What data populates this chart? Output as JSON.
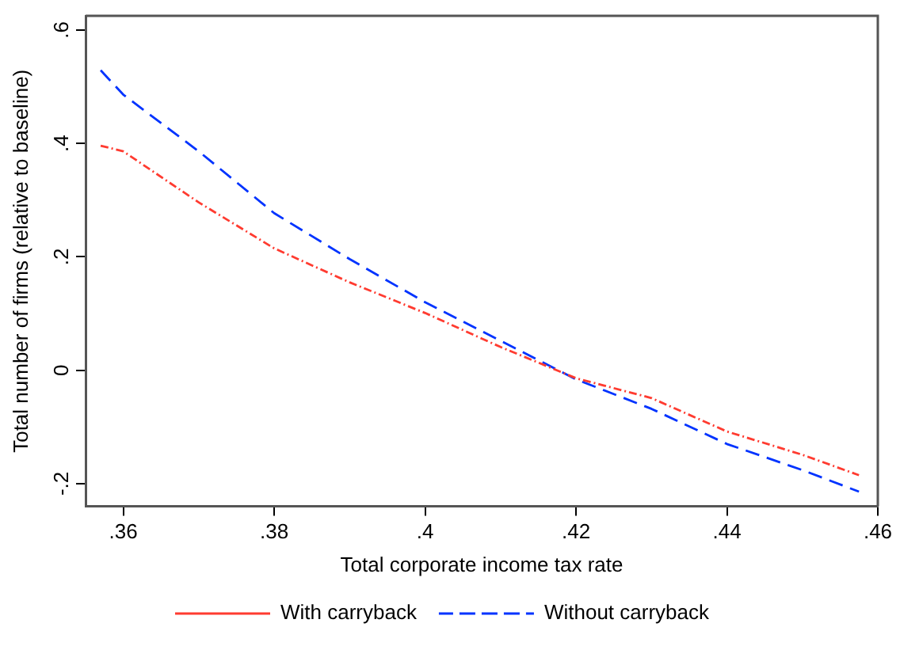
{
  "chart_data": {
    "type": "line",
    "xlabel": "Total corporate income tax rate",
    "ylabel": "Total number of firms (relative to baseline)",
    "xlim": [
      0.355,
      0.46
    ],
    "xticks": [
      {
        "value": 0.36,
        "label": ".36"
      },
      {
        "value": 0.38,
        "label": ".38"
      },
      {
        "value": 0.4,
        "label": ".4"
      },
      {
        "value": 0.42,
        "label": ".42"
      },
      {
        "value": 0.44,
        "label": ".44"
      },
      {
        "value": 0.46,
        "label": ".46"
      }
    ],
    "ylim": [
      -0.24,
      0.625
    ],
    "yticks": [
      {
        "value": -0.2,
        "label": "-.2"
      },
      {
        "value": 0,
        "label": "0"
      },
      {
        "value": 0.2,
        "label": ".2"
      },
      {
        "value": 0.4,
        "label": ".4"
      },
      {
        "value": 0.6,
        "label": ".6"
      }
    ],
    "x": [
      0.357,
      0.36,
      0.37,
      0.38,
      0.39,
      0.4,
      0.41,
      0.42,
      0.43,
      0.44,
      0.45,
      0.4575
    ],
    "series": [
      {
        "name": "With carryback",
        "color": "#ff3b30",
        "line_style": "dotted",
        "values": [
          0.396,
          0.386,
          0.296,
          0.215,
          0.155,
          0.101,
          0.041,
          -0.014,
          -0.049,
          -0.108,
          -0.149,
          -0.185
        ]
      },
      {
        "name": "Without carryback",
        "color": "#0033ff",
        "line_style": "dashed",
        "values": [
          0.529,
          0.486,
          0.386,
          0.277,
          0.196,
          0.12,
          0.052,
          -0.016,
          -0.068,
          -0.13,
          -0.176,
          -0.214
        ]
      }
    ],
    "grid": false,
    "legend": "bottom",
    "marker": "none"
  }
}
